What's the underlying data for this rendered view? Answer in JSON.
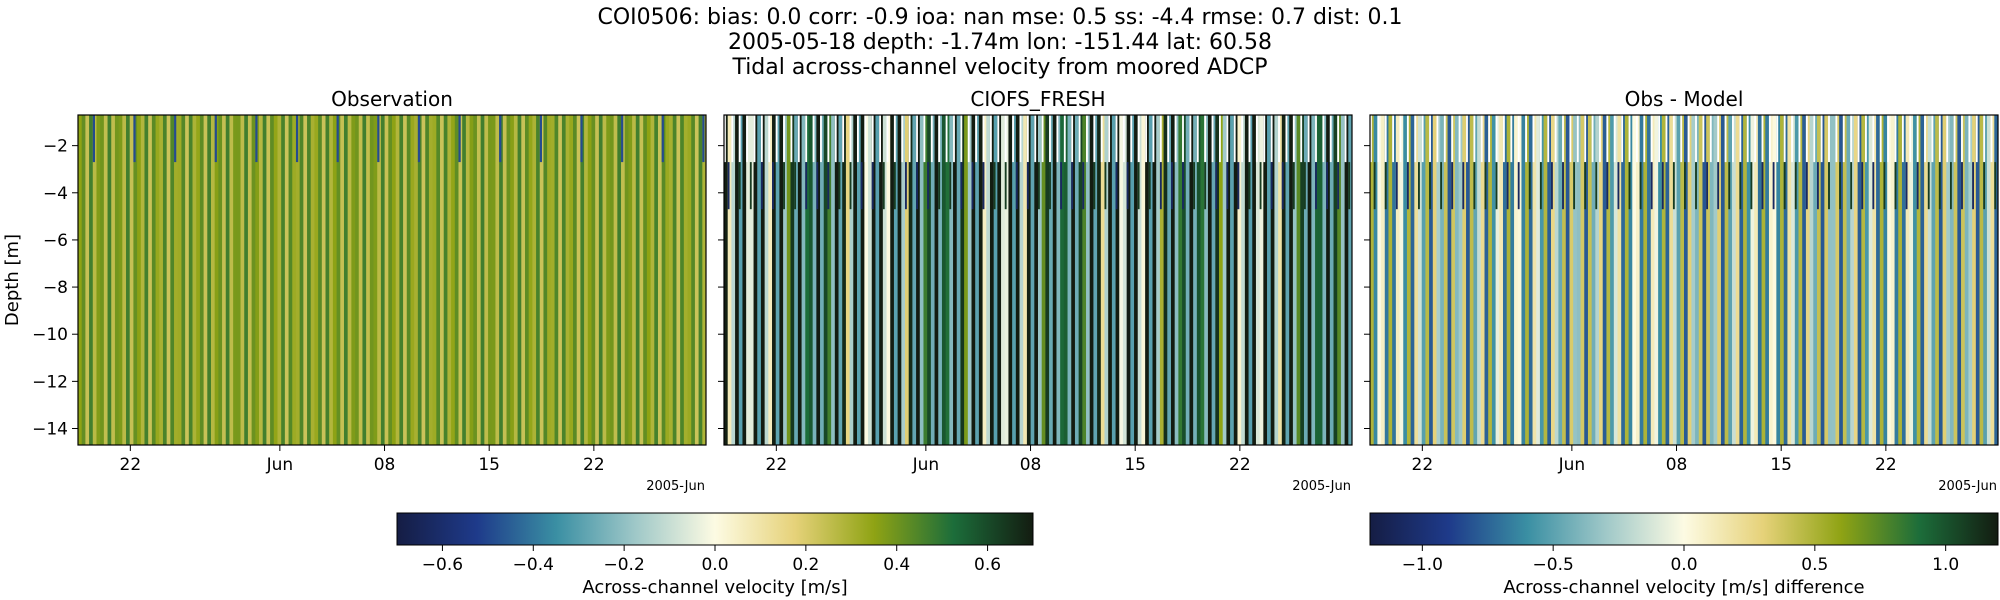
{
  "header": {
    "line1": "COI0506: bias: 0.0  corr: -0.9  ioa: nan  mse: 0.5  ss: -4.4  rmse: 0.7  dist: 0.1",
    "line2": "2005-05-18 depth: -1.74m lon: -151.44 lat: 60.58",
    "line3": "Tidal across-channel velocity from moored ADCP"
  },
  "colors": {
    "topo_cmap": [
      "#151d44",
      "#1e3a8a",
      "#3a8fa3",
      "#9fc8c8",
      "#fdfbe3",
      "#e6d27a",
      "#8fa314",
      "#1c6d3a",
      "#131c11"
    ]
  },
  "chart_data": [
    {
      "type": "heatmap",
      "title": "Observation",
      "ylabel": "Depth [m]",
      "yticks": [
        "−2",
        "−4",
        "−6",
        "−8",
        "−10",
        "−12",
        "−14"
      ],
      "yticks_values": [
        -2,
        -4,
        -6,
        -8,
        -10,
        -12,
        -14
      ],
      "ylim": [
        -14.7,
        -0.7
      ],
      "xticks": [
        "22",
        "Jun",
        "08",
        "15",
        "22"
      ],
      "xticks_days": [
        4,
        14,
        21,
        28,
        35
      ],
      "xlim_days": [
        0.5,
        42.5
      ],
      "offset_label": "2005-Jun",
      "vmin": -0.7,
      "vmax": 0.7,
      "bins_top": -2.7,
      "bins_mid": -4.7
    },
    {
      "type": "heatmap",
      "title": "CIOFS_FRESH",
      "xticks": [
        "22",
        "Jun",
        "08",
        "15",
        "22"
      ],
      "xticks_days": [
        4,
        14,
        21,
        28,
        35
      ],
      "xlim_days": [
        0.5,
        42.5
      ],
      "offset_label": "2005-Jun",
      "vmin": -0.7,
      "vmax": 0.7,
      "bins_top": -2.7,
      "bins_mid": -4.7
    },
    {
      "type": "heatmap",
      "title": "Obs - Model",
      "xticks": [
        "22",
        "Jun",
        "08",
        "15",
        "22"
      ],
      "xticks_days": [
        4,
        14,
        21,
        28,
        35
      ],
      "xlim_days": [
        0.5,
        42.5
      ],
      "offset_label": "2005-Jun",
      "vmin": -1.2,
      "vmax": 1.2,
      "bins_top": -2.7,
      "bins_mid": -4.7
    }
  ],
  "colorbars": [
    {
      "label": "Across-channel velocity [m/s]",
      "vmin": -0.7,
      "vmax": 0.7,
      "ticks": [
        "−0.6",
        "−0.4",
        "−0.2",
        "0.0",
        "0.2",
        "0.4",
        "0.6"
      ],
      "tick_values": [
        -0.6,
        -0.4,
        -0.2,
        0.0,
        0.2,
        0.4,
        0.6
      ]
    },
    {
      "label": "Across-channel velocity [m/s] difference",
      "vmin": -1.2,
      "vmax": 1.2,
      "ticks": [
        "−1.0",
        "−0.5",
        "0.0",
        "0.5",
        "1.0"
      ],
      "tick_values": [
        -1.0,
        -0.5,
        0.0,
        0.5,
        1.0
      ]
    }
  ]
}
